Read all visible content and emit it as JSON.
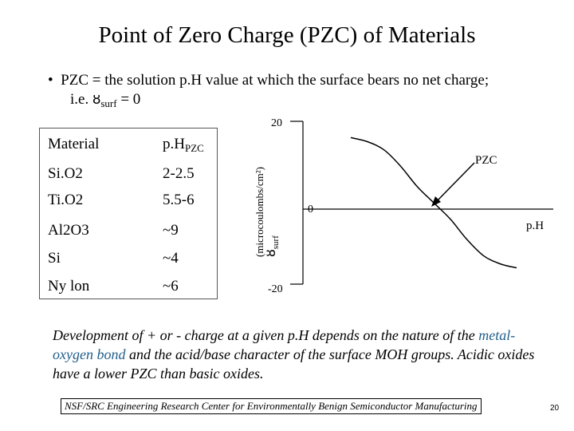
{
  "title": "Point of Zero Charge (PZC) of Materials",
  "bullet": {
    "marker": "•",
    "line1": "PZC  = the solution p.H value at which the surface bears no net charge;",
    "line2_prefix": "i.e. ",
    "sigma_symbol": "ȣ",
    "sigma_subscript": "surf",
    "line2_suffix": " = 0"
  },
  "table": {
    "header": {
      "material": "Material",
      "ph_main": "p.H",
      "ph_sub": "PZC"
    },
    "rows": [
      {
        "material": "Si.O2",
        "value": "2-2.5"
      },
      {
        "material": "Ti.O2",
        "value": "5.5-6"
      },
      {
        "material": "Al2O3",
        "value": "~9"
      },
      {
        "material": "Si",
        "value": "~4"
      },
      {
        "material": "Ny lon",
        "value": "~6"
      }
    ]
  },
  "chart_data": {
    "type": "line",
    "title": "",
    "xlabel": "p.H",
    "ylabel_symbol": "ȣ",
    "ylabel_subscript": "surf",
    "ylabel_units": "(microcoulombs/cm²)",
    "ylim": [
      -20,
      20
    ],
    "y_ticks": [
      "20",
      "0",
      "-20"
    ],
    "annotation": "PZC",
    "curve": {
      "description": "surface charge decreases with increasing pH, crossing zero at the PZC",
      "x": [
        0,
        1,
        2,
        3,
        4,
        5,
        6,
        7,
        8,
        9,
        10
      ],
      "y": [
        16,
        15,
        13,
        9,
        4,
        0,
        -4,
        -9,
        -13,
        -15,
        -16
      ]
    },
    "pzc_x": 5
  },
  "footer": {
    "text1": "Development of + or - charge at a given p.H depends on the nature of the ",
    "highlight": "metal-oxygen bond",
    "text2": " and the acid/base character of the surface MOH groups.  Acidic oxides have a lower PZC than basic oxides."
  },
  "credit": "NSF/SRC Engineering Research Center for Environmentally Benign Semiconductor Manufacturing",
  "page_number": "20",
  "colors": {
    "highlight": "#1f5e8c",
    "text": "#000000"
  }
}
